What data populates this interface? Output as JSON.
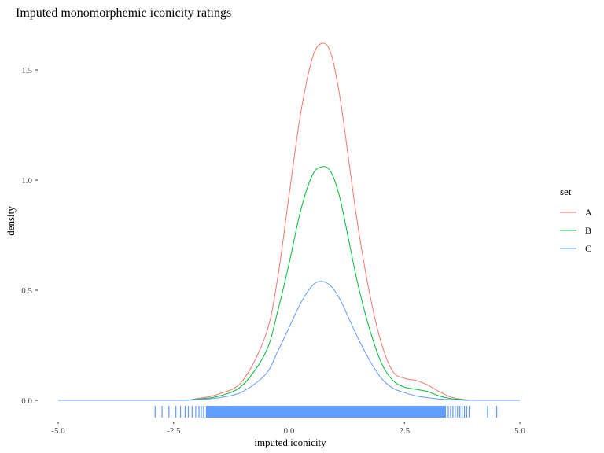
{
  "chart_data": {
    "type": "line",
    "title": "Imputed monomorphemic iconicity ratings",
    "xlabel": "imputed iconicity",
    "ylabel": "density",
    "xlim": [
      -5.0,
      5.0
    ],
    "ylim": [
      0.0,
      1.65
    ],
    "x_ticks": [
      -5.0,
      -2.5,
      0.0,
      2.5,
      5.0
    ],
    "x_tick_labels": [
      "-5.0",
      "-2.5",
      "0.0",
      "2.5",
      "5.0"
    ],
    "y_ticks": [
      0.0,
      0.5,
      1.0,
      1.5
    ],
    "y_tick_labels": [
      "0.0",
      "0.5",
      "1.0",
      "1.5"
    ],
    "grid": false,
    "legend": {
      "title": "set",
      "position": "right"
    },
    "series": [
      {
        "name": "A",
        "color": "#F8766D",
        "x": [
          -5.0,
          -2.5,
          -2.0,
          -1.5,
          -1.0,
          -0.5,
          -0.25,
          0.0,
          0.25,
          0.5,
          0.7,
          0.9,
          1.1,
          1.3,
          1.5,
          1.75,
          2.0,
          2.25,
          2.5,
          2.75,
          3.0,
          3.25,
          3.5,
          3.75,
          4.0,
          5.0
        ],
        "y": [
          0.0,
          0.0,
          0.008,
          0.03,
          0.09,
          0.3,
          0.55,
          0.93,
          1.3,
          1.55,
          1.62,
          1.58,
          1.38,
          1.08,
          0.78,
          0.48,
          0.26,
          0.13,
          0.1,
          0.09,
          0.07,
          0.04,
          0.015,
          0.005,
          0.0,
          0.0
        ]
      },
      {
        "name": "B",
        "color": "#00BA38",
        "x": [
          -5.0,
          -2.5,
          -2.0,
          -1.5,
          -1.0,
          -0.5,
          -0.25,
          0.0,
          0.25,
          0.5,
          0.7,
          0.9,
          1.1,
          1.3,
          1.5,
          1.75,
          2.0,
          2.25,
          2.5,
          2.75,
          3.0,
          3.25,
          3.5,
          3.75,
          4.0,
          5.0
        ],
        "y": [
          0.0,
          0.0,
          0.005,
          0.02,
          0.07,
          0.22,
          0.4,
          0.62,
          0.86,
          1.02,
          1.06,
          1.04,
          0.92,
          0.72,
          0.52,
          0.32,
          0.17,
          0.09,
          0.06,
          0.05,
          0.04,
          0.02,
          0.008,
          0.003,
          0.0,
          0.0
        ]
      },
      {
        "name": "C",
        "color": "#619CFF",
        "x": [
          -5.0,
          -2.5,
          -2.0,
          -1.5,
          -1.0,
          -0.5,
          -0.25,
          0.0,
          0.25,
          0.5,
          0.7,
          0.9,
          1.1,
          1.3,
          1.5,
          1.75,
          2.0,
          2.25,
          2.5,
          2.75,
          3.0,
          3.25,
          3.5,
          3.75,
          4.0,
          5.0
        ],
        "y": [
          0.0,
          0.0,
          0.003,
          0.012,
          0.04,
          0.12,
          0.22,
          0.33,
          0.44,
          0.52,
          0.54,
          0.52,
          0.46,
          0.37,
          0.28,
          0.18,
          0.1,
          0.055,
          0.035,
          0.02,
          0.012,
          0.006,
          0.003,
          0.001,
          0.0,
          0.0
        ]
      }
    ],
    "rug": {
      "color": "#619CFF",
      "dense_range": [
        -1.8,
        3.4
      ],
      "sparse_values": [
        -2.9,
        -2.75,
        -2.6,
        -2.45,
        -2.35,
        -2.25,
        -2.18,
        -2.1,
        -2.02,
        -1.95,
        -1.9,
        -1.85,
        3.45,
        3.5,
        3.55,
        3.6,
        3.65,
        3.7,
        3.75,
        3.8,
        3.85,
        3.9,
        4.3,
        4.5
      ]
    }
  }
}
